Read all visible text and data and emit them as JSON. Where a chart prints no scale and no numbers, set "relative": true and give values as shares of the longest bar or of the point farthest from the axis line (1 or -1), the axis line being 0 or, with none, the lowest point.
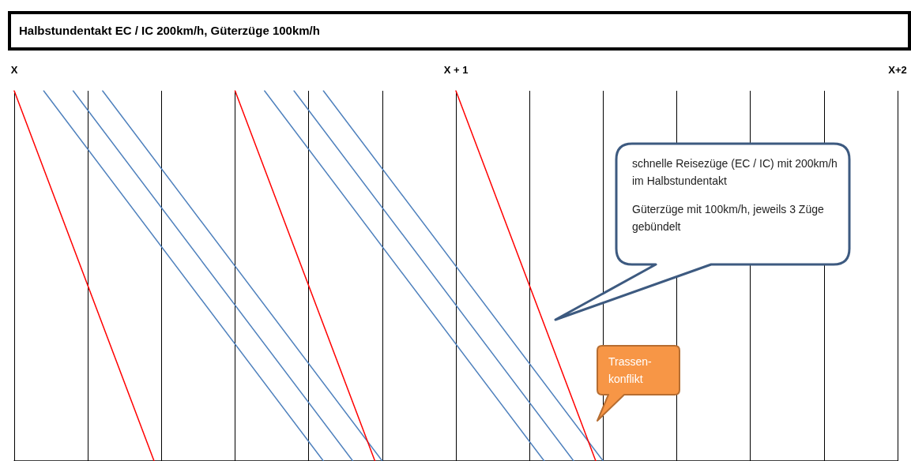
{
  "chart_data": {
    "type": "line",
    "title": "Halbstundentakt EC / IC 200km/h, Güterzüge 100km/h",
    "relative": true,
    "categories": [
      "X",
      null,
      null,
      null,
      null,
      null,
      null,
      null,
      null,
      null,
      null,
      null,
      null,
      null,
      null,
      null,
      null,
      null,
      null,
      null,
      null,
      null,
      null,
      null,
      null,
      null,
      null,
      null,
      null,
      null,
      null,
      null,
      null,
      null,
      null,
      null,
      null,
      null,
      null,
      null,
      null,
      null,
      null,
      null,
      null,
      null,
      null,
      null,
      null,
      null,
      null,
      null,
      null,
      null,
      null,
      null,
      null,
      null,
      null,
      null,
      "X + 1",
      null,
      null,
      null,
      null,
      null,
      null,
      null,
      null,
      null,
      null,
      null,
      null,
      null,
      null,
      null,
      null,
      null,
      null,
      null,
      null,
      null,
      null,
      null,
      null,
      null,
      null,
      null,
      null,
      null,
      null,
      null,
      null,
      null,
      null,
      null,
      null,
      null,
      null,
      null,
      null,
      null,
      null,
      null,
      null,
      null,
      null,
      null,
      null,
      null,
      null,
      null,
      null,
      null,
      null,
      null,
      null,
      null,
      null,
      null,
      "X+2"
    ],
    "grid": "x",
    "marker": "none",
    "line_style": "solid",
    "tick_labels": "x",
    "series": [
      {
        "color": "#ff0000",
        "values": [
          1,
          null,
          null,
          null,
          null,
          null,
          null,
          null,
          null,
          null,
          null,
          null,
          null,
          null,
          null,
          null,
          null,
          null,
          null,
          0,
          null,
          null,
          null,
          null,
          null,
          null,
          null,
          null,
          null,
          null,
          null,
          null,
          null,
          null,
          null,
          null,
          null,
          null,
          null,
          null,
          null,
          null,
          null,
          null,
          null,
          null,
          null,
          null,
          null,
          null,
          null,
          null,
          null,
          null,
          null,
          null,
          null,
          null,
          null,
          null,
          null,
          null,
          null,
          null,
          null,
          null,
          null,
          null,
          null,
          null,
          null,
          null,
          null,
          null,
          null,
          null,
          null,
          null,
          null,
          null,
          null,
          null,
          null,
          null,
          null,
          null,
          null,
          null,
          null,
          null,
          null,
          null,
          null,
          null,
          null,
          null,
          null,
          null,
          null,
          null,
          null,
          null,
          null,
          null,
          null,
          null,
          null,
          null,
          null,
          null,
          null,
          null,
          null,
          null,
          null,
          null,
          null,
          null,
          null,
          null,
          null
        ]
      },
      {
        "color": "#4f81bd",
        "values": [
          null,
          null,
          null,
          null,
          1,
          null,
          null,
          null,
          null,
          null,
          null,
          null,
          null,
          null,
          null,
          null,
          null,
          null,
          null,
          null,
          null,
          null,
          null,
          null,
          null,
          null,
          null,
          null,
          null,
          null,
          null,
          null,
          null,
          null,
          null,
          null,
          null,
          null,
          null,
          null,
          null,
          null,
          0,
          null,
          null,
          null,
          null,
          null,
          null,
          null,
          null,
          null,
          null,
          null,
          null,
          null,
          null,
          null,
          null,
          null,
          null,
          null,
          null,
          null,
          null,
          null,
          null,
          null,
          null,
          null,
          null,
          null,
          null,
          null,
          null,
          null,
          null,
          null,
          null,
          null,
          null,
          null,
          null,
          null,
          null,
          null,
          null,
          null,
          null,
          null,
          null,
          null,
          null,
          null,
          null,
          null,
          null,
          null,
          null,
          null,
          null,
          null,
          null,
          null,
          null,
          null,
          null,
          null,
          null,
          null,
          null,
          null,
          null,
          null,
          null,
          null,
          null,
          null,
          null,
          null,
          null
        ]
      },
      {
        "color": "#4f81bd",
        "values": [
          null,
          null,
          null,
          null,
          null,
          null,
          null,
          null,
          1,
          null,
          null,
          null,
          null,
          null,
          null,
          null,
          null,
          null,
          null,
          null,
          null,
          null,
          null,
          null,
          null,
          null,
          null,
          null,
          null,
          null,
          null,
          null,
          null,
          null,
          null,
          null,
          null,
          null,
          null,
          null,
          null,
          null,
          null,
          null,
          null,
          null,
          0,
          null,
          null,
          null,
          null,
          null,
          null,
          null,
          null,
          null,
          null,
          null,
          null,
          null,
          null,
          null,
          null,
          null,
          null,
          null,
          null,
          null,
          null,
          null,
          null,
          null,
          null,
          null,
          null,
          null,
          null,
          null,
          null,
          null,
          null,
          null,
          null,
          null,
          null,
          null,
          null,
          null,
          null,
          null,
          null,
          null,
          null,
          null,
          null,
          null,
          null,
          null,
          null,
          null,
          null,
          null,
          null,
          null,
          null,
          null,
          null,
          null,
          null,
          null,
          null,
          null,
          null,
          null,
          null,
          null,
          null,
          null,
          null,
          null,
          null
        ]
      },
      {
        "color": "#4f81bd",
        "values": [
          null,
          null,
          null,
          null,
          null,
          null,
          null,
          null,
          null,
          null,
          null,
          null,
          1,
          null,
          null,
          null,
          null,
          null,
          null,
          null,
          null,
          null,
          null,
          null,
          null,
          null,
          null,
          null,
          null,
          null,
          null,
          null,
          null,
          null,
          null,
          null,
          null,
          null,
          null,
          null,
          null,
          null,
          null,
          null,
          null,
          null,
          null,
          null,
          null,
          null,
          0,
          null,
          null,
          null,
          null,
          null,
          null,
          null,
          null,
          null,
          null,
          null,
          null,
          null,
          null,
          null,
          null,
          null,
          null,
          null,
          null,
          null,
          null,
          null,
          null,
          null,
          null,
          null,
          null,
          null,
          null,
          null,
          null,
          null,
          null,
          null,
          null,
          null,
          null,
          null,
          null,
          null,
          null,
          null,
          null,
          null,
          null,
          null,
          null,
          null,
          null,
          null,
          null,
          null,
          null,
          null,
          null,
          null,
          null,
          null,
          null,
          null,
          null,
          null,
          null,
          null,
          null,
          null,
          null,
          null,
          null
        ]
      },
      {
        "color": "#ff0000",
        "values": [
          null,
          null,
          null,
          null,
          null,
          null,
          null,
          null,
          null,
          null,
          null,
          null,
          null,
          null,
          null,
          null,
          null,
          null,
          null,
          null,
          null,
          null,
          null,
          null,
          null,
          null,
          null,
          null,
          null,
          null,
          1,
          null,
          null,
          null,
          null,
          null,
          null,
          null,
          null,
          null,
          null,
          null,
          null,
          null,
          null,
          null,
          null,
          null,
          null,
          0,
          null,
          null,
          null,
          null,
          null,
          null,
          null,
          null,
          null,
          null,
          null,
          null,
          null,
          null,
          null,
          null,
          null,
          null,
          null,
          null,
          null,
          null,
          null,
          null,
          null,
          null,
          null,
          null,
          null,
          null,
          null,
          null,
          null,
          null,
          null,
          null,
          null,
          null,
          null,
          null,
          null,
          null,
          null,
          null,
          null,
          null,
          null,
          null,
          null,
          null,
          null,
          null,
          null,
          null,
          null,
          null,
          null,
          null,
          null,
          null,
          null,
          null,
          null,
          null,
          null,
          null,
          null,
          null,
          null,
          null,
          null
        ]
      },
      {
        "color": "#4f81bd",
        "values": [
          null,
          null,
          null,
          null,
          null,
          null,
          null,
          null,
          null,
          null,
          null,
          null,
          null,
          null,
          null,
          null,
          null,
          null,
          null,
          null,
          null,
          null,
          null,
          null,
          null,
          null,
          null,
          null,
          null,
          null,
          null,
          null,
          null,
          null,
          1,
          null,
          null,
          null,
          null,
          null,
          null,
          null,
          null,
          null,
          null,
          null,
          null,
          null,
          null,
          null,
          null,
          null,
          null,
          null,
          null,
          null,
          null,
          null,
          null,
          null,
          null,
          null,
          null,
          null,
          null,
          null,
          null,
          null,
          null,
          null,
          null,
          null,
          0,
          null,
          null,
          null,
          null,
          null,
          null,
          null,
          null,
          null,
          null,
          null,
          null,
          null,
          null,
          null,
          null,
          null,
          null,
          null,
          null,
          null,
          null,
          null,
          null,
          null,
          null,
          null,
          null,
          null,
          null,
          null,
          null,
          null,
          null,
          null,
          null,
          null,
          null,
          null,
          null,
          null,
          null,
          null,
          null,
          null,
          null,
          null,
          null
        ]
      },
      {
        "color": "#4f81bd",
        "values": [
          null,
          null,
          null,
          null,
          null,
          null,
          null,
          null,
          null,
          null,
          null,
          null,
          null,
          null,
          null,
          null,
          null,
          null,
          null,
          null,
          null,
          null,
          null,
          null,
          null,
          null,
          null,
          null,
          null,
          null,
          null,
          null,
          null,
          null,
          null,
          null,
          null,
          null,
          1,
          null,
          null,
          null,
          null,
          null,
          null,
          null,
          null,
          null,
          null,
          null,
          null,
          null,
          null,
          null,
          null,
          null,
          null,
          null,
          null,
          null,
          null,
          null,
          null,
          null,
          null,
          null,
          null,
          null,
          null,
          null,
          null,
          null,
          null,
          null,
          null,
          null,
          0,
          null,
          null,
          null,
          null,
          null,
          null,
          null,
          null,
          null,
          null,
          null,
          null,
          null,
          null,
          null,
          null,
          null,
          null,
          null,
          null,
          null,
          null,
          null,
          null,
          null,
          null,
          null,
          null,
          null,
          null,
          null,
          null,
          null,
          null,
          null,
          null,
          null,
          null,
          null,
          null,
          null,
          null,
          null,
          null
        ]
      },
      {
        "color": "#4f81bd",
        "values": [
          null,
          null,
          null,
          null,
          null,
          null,
          null,
          null,
          null,
          null,
          null,
          null,
          null,
          null,
          null,
          null,
          null,
          null,
          null,
          null,
          null,
          null,
          null,
          null,
          null,
          null,
          null,
          null,
          null,
          null,
          null,
          null,
          null,
          null,
          null,
          null,
          null,
          null,
          null,
          null,
          null,
          null,
          1,
          null,
          null,
          null,
          null,
          null,
          null,
          null,
          null,
          null,
          null,
          null,
          null,
          null,
          null,
          null,
          null,
          null,
          null,
          null,
          null,
          null,
          null,
          null,
          null,
          null,
          null,
          null,
          null,
          null,
          null,
          null,
          null,
          null,
          null,
          null,
          null,
          null,
          0,
          null,
          null,
          null,
          null,
          null,
          null,
          null,
          null,
          null,
          null,
          null,
          null,
          null,
          null,
          null,
          null,
          null,
          null,
          null,
          null,
          null,
          null,
          null,
          null,
          null,
          null,
          null,
          null,
          null,
          null,
          null,
          null,
          null,
          null,
          null,
          null,
          null,
          null,
          null,
          null
        ]
      },
      {
        "color": "#ff0000",
        "values": [
          null,
          null,
          null,
          null,
          null,
          null,
          null,
          null,
          null,
          null,
          null,
          null,
          null,
          null,
          null,
          null,
          null,
          null,
          null,
          null,
          null,
          null,
          null,
          null,
          null,
          null,
          null,
          null,
          null,
          null,
          null,
          null,
          null,
          null,
          null,
          null,
          null,
          null,
          null,
          null,
          null,
          null,
          null,
          null,
          null,
          null,
          null,
          null,
          null,
          null,
          null,
          null,
          null,
          null,
          null,
          null,
          null,
          null,
          null,
          null,
          1,
          null,
          null,
          null,
          null,
          null,
          null,
          null,
          null,
          null,
          null,
          null,
          null,
          null,
          null,
          null,
          null,
          null,
          null,
          0,
          null,
          null,
          null,
          null,
          null,
          null,
          null,
          null,
          null,
          null,
          null,
          null,
          null,
          null,
          null,
          null,
          null,
          null,
          null,
          null,
          null,
          null,
          null,
          null,
          null,
          null,
          null,
          null,
          null,
          null,
          null,
          null,
          null,
          null,
          null,
          null,
          null,
          null,
          null,
          null,
          null
        ]
      }
    ],
    "annotations": [
      "schnelle Reisezüge (EC / IC) mit 200km/h im Halbstundentakt",
      "Güterzüge mit 100km/h, jeweils 3 Züge gebündelt",
      "Trassen-konflikt"
    ]
  }
}
